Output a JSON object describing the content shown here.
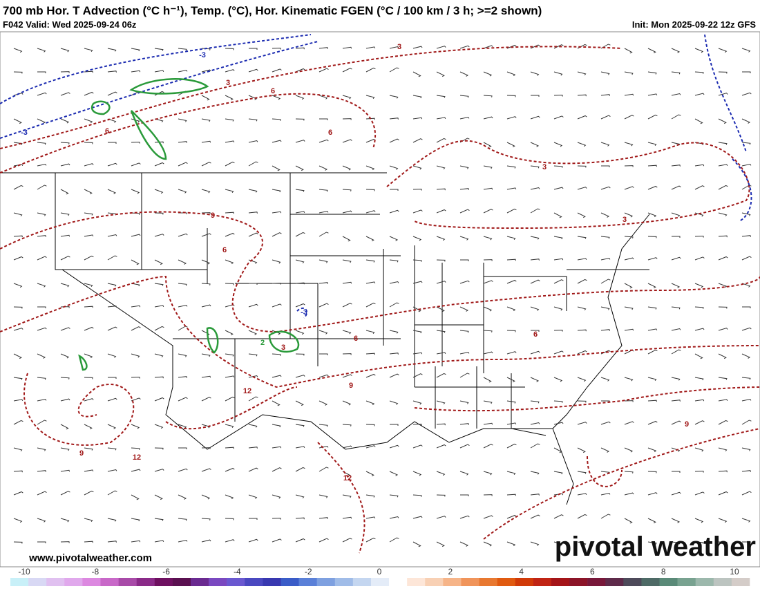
{
  "header": {
    "title": "700 mb Hor. T Advection (°C h⁻¹), Temp. (°C), Hor. Kinematic FGEN (°C / 100 km / 3 h; >=2 shown)",
    "valid": "F042 Valid: Wed 2025-09-24 06z",
    "init": "Init: Mon 2025-09-22 12z GFS"
  },
  "map": {
    "contour_labels": [
      "-3",
      "-3",
      "-3",
      "3",
      "3",
      "3",
      "3",
      "6",
      "6",
      "6",
      "6",
      "6",
      "6",
      "9",
      "9",
      "9",
      "9",
      "12",
      "12",
      "12",
      "2",
      "3"
    ],
    "watermark": "pivotal weather",
    "url": "www.pivotalweather.com"
  },
  "colorbar": {
    "ticks": [
      -10,
      -8,
      -6,
      -4,
      -2,
      0,
      2,
      4,
      6,
      8,
      10
    ],
    "colors": [
      "#c8f0f8",
      "#d8d8f4",
      "#e0c0f0",
      "#e0a8ec",
      "#dc88e0",
      "#c868c8",
      "#a84aa8",
      "#8a2a88",
      "#6e1060",
      "#5a1050",
      "#6a2a90",
      "#7a48c0",
      "#6a58d0",
      "#4a48c0",
      "#3838b0",
      "#3a5cc8",
      "#5a80d8",
      "#7ea0e0",
      "#a0bce8",
      "#c4d6f0",
      "#e4ecf8",
      "#ffffff",
      "#fde6d8",
      "#f8d0b4",
      "#f6b488",
      "#f0945a",
      "#e87830",
      "#e05a10",
      "#d03a08",
      "#c02414",
      "#a41418",
      "#8c1428",
      "#78183a",
      "#5e2a4a",
      "#4e4a5a",
      "#4e6a66",
      "#5a8a78",
      "#78a290",
      "#9cb8ac",
      "#bcc4c0",
      "#d4ccc8"
    ]
  }
}
